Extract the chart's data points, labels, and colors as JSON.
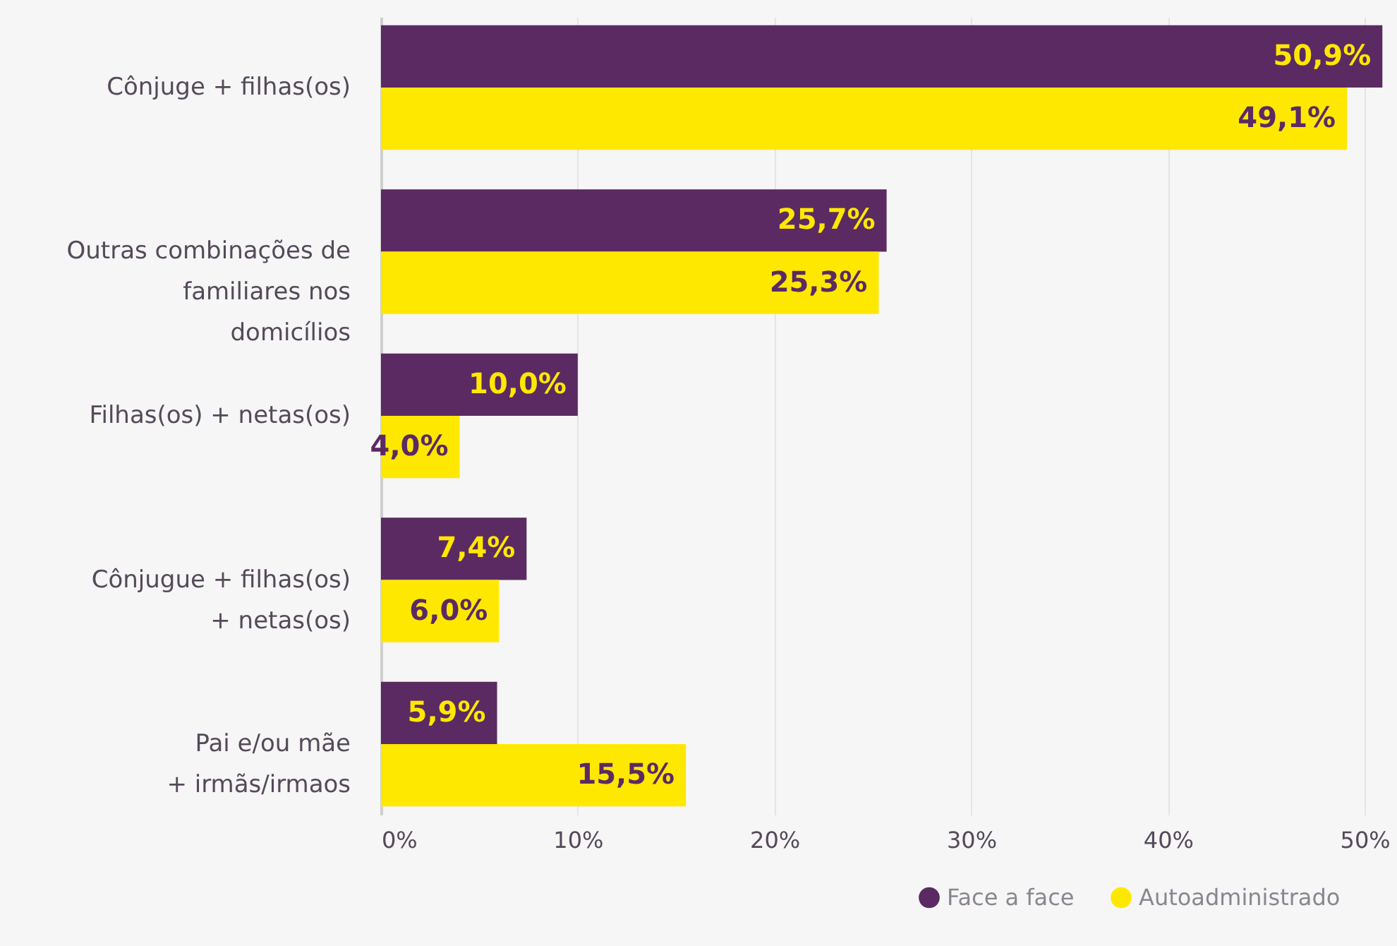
{
  "chart_data": {
    "type": "bar",
    "orientation": "horizontal",
    "categories": [
      "Cônjuge + filhas(os)",
      "Outras combinações de familiares nos domicílios",
      "Filhas(os)  + netas(os)",
      "Cônjugue + filhas(os) + netas(os)",
      "Pai e/ou mãe + irmãs/irmaos"
    ],
    "series": [
      {
        "name": "Face a face",
        "color": "#5b2a62",
        "values": [
          50.9,
          25.7,
          10.0,
          7.4,
          5.9
        ],
        "value_labels": [
          "50,9%",
          "25,7%",
          "10,0%",
          "7,4%",
          "5,9%"
        ]
      },
      {
        "name": "Autoadministrado",
        "color": "#ffe800",
        "values": [
          49.1,
          25.3,
          4.0,
          6.0,
          15.5
        ],
        "value_labels": [
          "49,1%",
          "25,3%",
          "4,0%",
          "6,0%",
          "15,5%"
        ]
      }
    ],
    "xlim": [
      0,
      51.5
    ],
    "xticks": [
      {
        "value": 0,
        "label": "0%"
      },
      {
        "value": 10,
        "label": "10%"
      },
      {
        "value": 20,
        "label": "20%"
      },
      {
        "value": 30,
        "label": "30%"
      },
      {
        "value": 40,
        "label": "40%"
      },
      {
        "value": 50,
        "label": "50%"
      }
    ],
    "grid": "x",
    "legend": "bottom right"
  }
}
